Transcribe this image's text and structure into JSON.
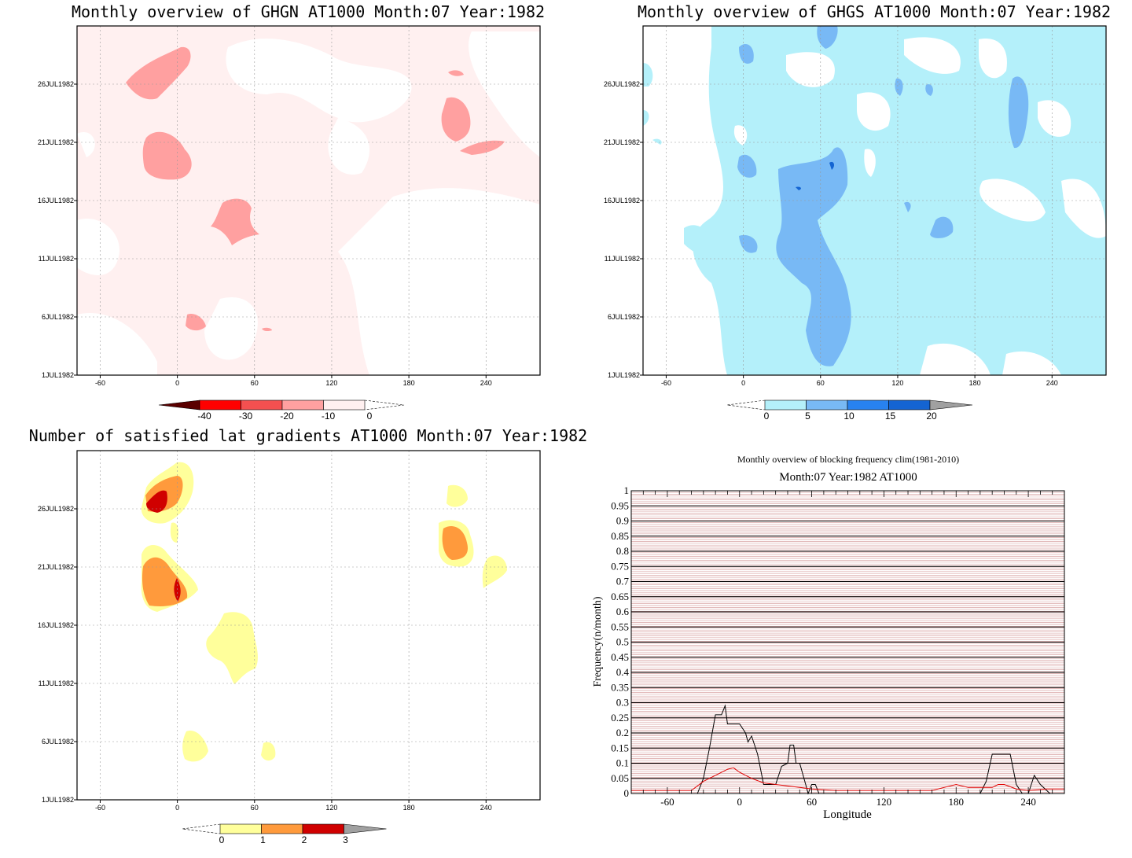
{
  "chart_data": [
    {
      "type": "heatmap",
      "title": "Monthly overview of GHGN AT1000 Month:07 Year:1982",
      "x_ticks": [
        "-60",
        "0",
        "60",
        "120",
        "180",
        "240"
      ],
      "y_ticks": [
        "1JUL1982",
        "6JUL1982",
        "11JUL1982",
        "16JUL1982",
        "21JUL1982",
        "26JUL1982"
      ],
      "colorbar": {
        "labels": [
          "-40",
          "-30",
          "-20",
          "-10",
          "0"
        ],
        "colors": [
          "#5a0000",
          "#ff0000",
          "#f45050",
          "#ffa0a0",
          "#fff0f0"
        ]
      },
      "regions": [
        {
          "level": "-10 to 0",
          "color": "#fff0f0",
          "area": "background"
        },
        {
          "level": "-20 to -10",
          "color": "#ffa0a0",
          "x": -10,
          "day": 20
        },
        {
          "level": "-20 to -10",
          "color": "#ffa0a0",
          "x": -25,
          "day": 27
        },
        {
          "level": "-20 to -10",
          "color": "#ffa0a0",
          "x": 40,
          "day": 15
        },
        {
          "level": "-20 to -10",
          "color": "#ffa0a0",
          "x": 210,
          "day": 23
        },
        {
          "level": "-20 to -10",
          "color": "#ffa0a0",
          "x": 10,
          "day": 5
        }
      ]
    },
    {
      "type": "heatmap",
      "title": "Monthly overview of GHGS AT1000 Month:07 Year:1982",
      "x_ticks": [
        "-60",
        "0",
        "60",
        "120",
        "180",
        "240"
      ],
      "y_ticks": [
        "1JUL1982",
        "6JUL1982",
        "11JUL1982",
        "16JUL1982",
        "21JUL1982",
        "26JUL1982"
      ],
      "colorbar": {
        "labels": [
          "0",
          "5",
          "10",
          "15",
          "20"
        ],
        "colors": [
          "#b4f0fa",
          "#78b9f5",
          "#2882f0",
          "#1464d2",
          "#a0a0a0"
        ]
      },
      "regions": [
        {
          "level": "0 to 5",
          "color": "#b4f0fa",
          "area": "most of domain"
        },
        {
          "level": "5 to 10",
          "color": "#78b9f5",
          "x": 60,
          "day": 12
        }
      ]
    },
    {
      "type": "heatmap",
      "title": "Number of satisfied lat gradients AT1000 Month:07 Year:1982",
      "x_ticks": [
        "-60",
        "0",
        "60",
        "120",
        "180",
        "240"
      ],
      "y_ticks": [
        "1JUL1982",
        "6JUL1982",
        "11JUL1982",
        "16JUL1982",
        "21JUL1982",
        "26JUL1982"
      ],
      "colorbar": {
        "labels": [
          "0",
          "1",
          "2",
          "3"
        ],
        "colors": [
          "#ffff9b",
          "#ff9a3c",
          "#d00000",
          "#a0a0a0"
        ]
      },
      "regions": [
        {
          "level": "0 to 1",
          "color": "#ffff9b",
          "x": 35,
          "day": 14
        },
        {
          "level": "1 to 2",
          "color": "#ff9a3c",
          "x": -15,
          "day": 20
        },
        {
          "level": "2 to 3",
          "color": "#d00000",
          "x": -15,
          "day": 26
        },
        {
          "level": "1 to 2",
          "color": "#ff9a3c",
          "x": 215,
          "day": 23
        }
      ]
    },
    {
      "type": "line",
      "title": "Monthly overview of blocking frequency clim(1981-2010)",
      "subtitle": "Month:07 Year:1982  AT1000",
      "xlabel": "Longitude",
      "ylabel": "Frequency(n/month)",
      "xlim": [
        -90,
        270
      ],
      "ylim": [
        0,
        1
      ],
      "x_ticks": [
        "-60",
        "0",
        "60",
        "120",
        "180",
        "240"
      ],
      "y_ticks": [
        "0",
        "0.05",
        "0.1",
        "0.15",
        "0.2",
        "0.25",
        "0.3",
        "0.35",
        "0.4",
        "0.45",
        "0.5",
        "0.55",
        "0.6",
        "0.65",
        "0.7",
        "0.75",
        "0.8",
        "0.85",
        "0.9",
        "0.95",
        "1"
      ],
      "series": [
        {
          "color": "#000000",
          "x": [
            -90,
            -35,
            -30,
            -25,
            -20,
            -15,
            -12,
            -10,
            -5,
            0,
            5,
            7,
            10,
            15,
            20,
            25,
            30,
            35,
            40,
            42,
            45,
            47,
            50,
            55,
            57,
            60,
            63,
            66,
            70,
            75,
            80,
            85,
            190,
            200,
            205,
            210,
            215,
            220,
            225,
            230,
            235,
            240,
            245,
            250,
            258,
            270
          ],
          "y": [
            0,
            0,
            0.05,
            0.15,
            0.26,
            0.26,
            0.29,
            0.23,
            0.23,
            0.23,
            0.2,
            0.17,
            0.19,
            0.13,
            0.03,
            0.03,
            0.03,
            0.09,
            0.1,
            0.16,
            0.16,
            0.1,
            0.1,
            0.03,
            0,
            0.03,
            0.03,
            0,
            0,
            0,
            0,
            0,
            0,
            0,
            0.04,
            0.13,
            0.13,
            0.13,
            0.13,
            0.03,
            0,
            0,
            0.06,
            0.03,
            0,
            0
          ]
        },
        {
          "color": "#e00000",
          "x": [
            -90,
            -60,
            -40,
            -30,
            -20,
            -10,
            -5,
            0,
            10,
            20,
            30,
            40,
            50,
            60,
            80,
            100,
            120,
            140,
            160,
            170,
            180,
            190,
            200,
            210,
            215,
            220,
            230,
            240,
            255,
            270
          ],
          "y": [
            0.01,
            0.01,
            0.01,
            0.04,
            0.06,
            0.08,
            0.085,
            0.07,
            0.05,
            0.035,
            0.03,
            0.025,
            0.02,
            0.015,
            0.01,
            0.01,
            0.01,
            0.01,
            0.01,
            0.02,
            0.03,
            0.02,
            0.02,
            0.02,
            0.03,
            0.03,
            0.015,
            0.01,
            0.015,
            0.015
          ]
        }
      ]
    }
  ]
}
